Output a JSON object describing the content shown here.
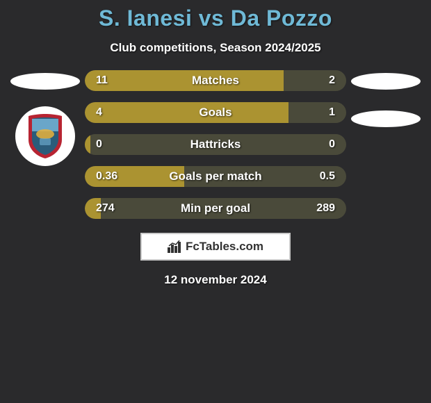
{
  "title": "S. Ianesi vs Da Pozzo",
  "subtitle": "Club competitions, Season 2024/2025",
  "date": "12 november 2024",
  "fctables_label": "FcTables.com",
  "colors": {
    "background": "#2a2a2c",
    "title": "#6fb9d6",
    "text_light": "#ffffff",
    "bar_fill": "#ab9331",
    "bar_track": "#4a4a3a",
    "ellipse": "#ffffff",
    "fctables_bg": "#ffffff",
    "fctables_border": "#c9c9c9",
    "fctables_text": "#323232"
  },
  "bars": [
    {
      "label": "Matches",
      "left": "11",
      "right": "2",
      "fill_pct": 76
    },
    {
      "label": "Goals",
      "left": "4",
      "right": "1",
      "fill_pct": 78
    },
    {
      "label": "Hattricks",
      "left": "0",
      "right": "0",
      "fill_pct": 2
    },
    {
      "label": "Goals per match",
      "left": "0.36",
      "right": "0.5",
      "fill_pct": 38
    },
    {
      "label": "Min per goal",
      "left": "274",
      "right": "289",
      "fill_pct": 6
    }
  ],
  "left_side": {
    "has_badge": true,
    "badge_colors": {
      "outer_ring": "#b72432",
      "field_top": "#6aa6c9",
      "field_bottom": "#2b5c7a",
      "accent": "#e7b23c"
    }
  },
  "right_side": {
    "has_badge": false
  }
}
